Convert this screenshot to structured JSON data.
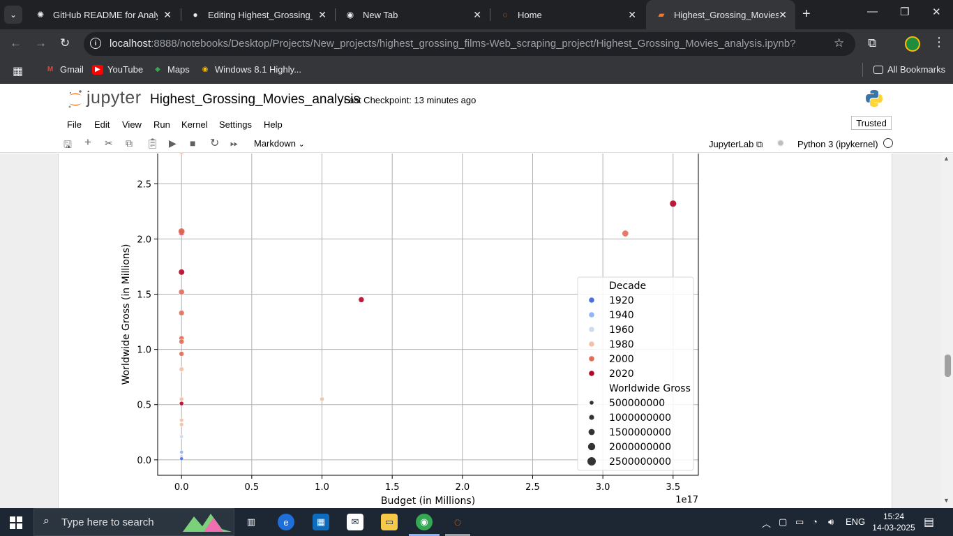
{
  "browser": {
    "tabs": [
      {
        "title": "GitHub README for Analysis",
        "icon": "openai-icon"
      },
      {
        "title": "Editing Highest_Grossing_film",
        "icon": "github-icon"
      },
      {
        "title": "New Tab",
        "icon": "chrome-icon"
      },
      {
        "title": "Home",
        "icon": "jupyter-icon"
      },
      {
        "title": "Highest_Grossing_Movies_an",
        "icon": "notebook-icon",
        "active": true
      }
    ],
    "url_host": "localhost",
    "url_path": ":8888/notebooks/Desktop/Projects/New_projects/highest_grossing_films-Web_scraping_project/Highest_Grossing_Movies_analysis.ipynb?",
    "bookmarks": [
      {
        "label": "Gmail",
        "color": "#ea4335"
      },
      {
        "label": "YouTube",
        "color": "#ff0000"
      },
      {
        "label": "Maps",
        "color": "#34a853"
      },
      {
        "label": "Windows 8.1 Highly...",
        "color": "#fbbc04"
      }
    ],
    "all_bookmarks": "All Bookmarks"
  },
  "jupyter": {
    "logo_text": "jupyter",
    "notebook_title": "Highest_Grossing_Movies_analysis",
    "checkpoint": "Last Checkpoint: 13 minutes ago",
    "menu": [
      "File",
      "Edit",
      "View",
      "Run",
      "Kernel",
      "Settings",
      "Help"
    ],
    "trusted": "Trusted",
    "cell_type": "Markdown",
    "jupyterlab_link": "JupyterLab",
    "kernel": "Python 3 (ipykernel)"
  },
  "chart_data": {
    "type": "scatter",
    "xlabel": "Budget (in Millions)",
    "ylabel": "Worldwide Gross (in Millions)",
    "x_offset_label": "1e17",
    "xlim": [
      -0.17,
      3.68
    ],
    "ylim": [
      -0.14,
      2.9
    ],
    "x_ticks": [
      0.0,
      0.5,
      1.0,
      1.5,
      2.0,
      2.5,
      3.0,
      3.5
    ],
    "x_tick_labels": [
      "0.0",
      "0.5",
      "1.0",
      "1.5",
      "2.0",
      "2.5",
      "3.0",
      "3.5"
    ],
    "y_ticks": [
      0.0,
      0.5,
      1.0,
      1.5,
      2.0,
      2.5
    ],
    "y_tick_labels": [
      "0.0",
      "0.5",
      "1.0",
      "1.5",
      "2.0",
      "2.5"
    ],
    "grid": true,
    "legend_placement": "lower-right",
    "legend": {
      "hue_title": "Decade",
      "hue": [
        {
          "label": "1920",
          "color": "#4a6fe3"
        },
        {
          "label": "1940",
          "color": "#92b4fa"
        },
        {
          "label": "1960",
          "color": "#cfdaea"
        },
        {
          "label": "1980",
          "color": "#f3c1a7"
        },
        {
          "label": "2000",
          "color": "#e36b54"
        },
        {
          "label": "2020",
          "color": "#b40426"
        }
      ],
      "size_title": "Worldwide Gross",
      "size": [
        {
          "label": "500000000",
          "value": 500000000
        },
        {
          "label": "1000000000",
          "value": 1000000000
        },
        {
          "label": "1500000000",
          "value": 1500000000
        },
        {
          "label": "2000000000",
          "value": 2000000000
        },
        {
          "label": "2500000000",
          "value": 2500000000
        }
      ]
    },
    "points": [
      {
        "x": 0.0,
        "y": 2.8,
        "decade": "2000"
      },
      {
        "x": 0.0,
        "y": 2.06,
        "decade": "2020"
      },
      {
        "x": 0.0,
        "y": 2.07,
        "decade": "2000"
      },
      {
        "x": 0.0,
        "y": 1.7,
        "decade": "2020"
      },
      {
        "x": 0.0,
        "y": 1.52,
        "decade": "2000"
      },
      {
        "x": 0.0,
        "y": 1.33,
        "decade": "2000"
      },
      {
        "x": 0.0,
        "y": 1.1,
        "decade": "2000"
      },
      {
        "x": 0.0,
        "y": 1.07,
        "decade": "2000"
      },
      {
        "x": 0.0,
        "y": 0.96,
        "decade": "2000"
      },
      {
        "x": 0.0,
        "y": 0.82,
        "decade": "1980"
      },
      {
        "x": 0.0,
        "y": 0.55,
        "decade": "1980"
      },
      {
        "x": 0.0,
        "y": 0.51,
        "decade": "2020"
      },
      {
        "x": 0.0,
        "y": 0.36,
        "decade": "1980"
      },
      {
        "x": 0.0,
        "y": 0.32,
        "decade": "1980"
      },
      {
        "x": 0.0,
        "y": 0.21,
        "decade": "1960"
      },
      {
        "x": 0.0,
        "y": 0.07,
        "decade": "1940"
      },
      {
        "x": 0.0,
        "y": 0.03,
        "decade": "1960"
      },
      {
        "x": 0.0,
        "y": 0.01,
        "decade": "1920"
      },
      {
        "x": 1.0,
        "y": 0.55,
        "decade": "1980"
      },
      {
        "x": 1.28,
        "y": 1.45,
        "decade": "2020"
      },
      {
        "x": 3.16,
        "y": 2.05,
        "decade": "2000"
      },
      {
        "x": 3.5,
        "y": 2.32,
        "decade": "2020"
      }
    ]
  },
  "taskbar": {
    "search_placeholder": "Type here to search",
    "language": "ENG",
    "time": "15:24",
    "date": "14-03-2025"
  }
}
